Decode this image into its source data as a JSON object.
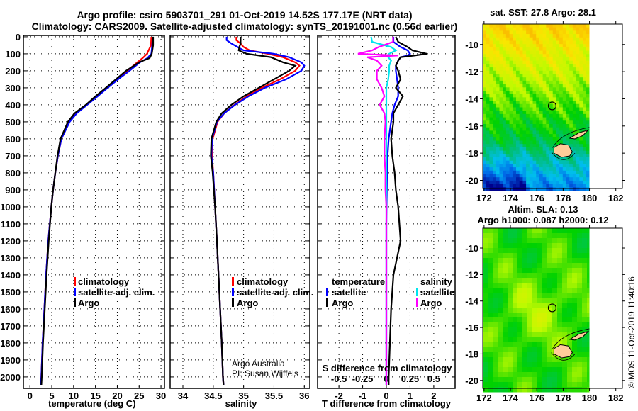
{
  "title": {
    "line1": "Argo profile: csiro 5903701_291 01-Oct-2019 14.52S 177.17E (NRT data)",
    "line2": "Climatology: CARS2009. Satellite-adjusted climatology: synTS_20191001.nc (0.56d earlier)"
  },
  "credit": "©IMOS 11-Oct-2019 11:40:16",
  "attribution": {
    "line1": "Argo Australia",
    "line2": "PI: Susan Wijffels"
  },
  "colors": {
    "climatology": "#ff0000",
    "satellite": "#0000ff",
    "argo": "#000000",
    "sal_satellite": "#00e5ee",
    "sal_argo": "#ff00ff"
  },
  "chart_data": [
    {
      "type": "line",
      "id": "temperature",
      "xlabel": "temperature (deg C)",
      "ylabel": "",
      "xlim": [
        -1.5,
        30.8
      ],
      "ylim": [
        2067,
        -8
      ],
      "xticks": [
        "0",
        "5",
        "10",
        "15",
        "20",
        "25",
        "30"
      ],
      "yticks": [
        "0",
        "100",
        "200",
        "300",
        "400",
        "500",
        "600",
        "700",
        "800",
        "900",
        "1000",
        "1100",
        "1200",
        "1300",
        "1400",
        "1500",
        "1600",
        "1700",
        "1800",
        "1900",
        "2000"
      ],
      "grid": true,
      "legend": [
        "climatology",
        "satellite-adj. clim.",
        "Argo"
      ],
      "depth": [
        0,
        50,
        100,
        125,
        150,
        200,
        250,
        300,
        350,
        400,
        450,
        500,
        600,
        700,
        800,
        900,
        1000,
        1200,
        1400,
        1600,
        1800,
        2000,
        2050
      ],
      "series": [
        {
          "name": "climatology",
          "values": [
            27.8,
            27.7,
            26.8,
            25.8,
            24.6,
            22.3,
            19.9,
            17.6,
            15.3,
            13.0,
            10.6,
            9.0,
            7.2,
            6.4,
            5.8,
            5.3,
            4.9,
            4.2,
            3.7,
            3.3,
            2.9,
            2.6,
            2.5
          ]
        },
        {
          "name": "satellite-adj. clim.",
          "values": [
            28.1,
            28.0,
            27.8,
            26.9,
            25.2,
            22.8,
            20.2,
            17.8,
            15.5,
            13.1,
            10.7,
            9.1,
            7.2,
            6.4,
            5.8,
            5.3,
            4.9,
            4.2,
            3.7,
            3.3,
            2.9,
            2.6,
            2.5
          ]
        },
        {
          "name": "Argo",
          "values": [
            28.2,
            28.2,
            27.9,
            27.4,
            25.0,
            22.0,
            19.7,
            17.4,
            15.0,
            12.8,
            10.2,
            8.7,
            7.0,
            6.3,
            5.8,
            5.3,
            4.9,
            4.3,
            3.8,
            3.4,
            3.0,
            2.7,
            2.6
          ]
        }
      ]
    },
    {
      "type": "line",
      "id": "salinity",
      "xlabel": "salinity",
      "xlim": [
        33.79,
        36.09
      ],
      "ylim": [
        2067,
        -8
      ],
      "xticks": [
        "34",
        "34.5",
        "35",
        "35.5",
        "36"
      ],
      "grid": true,
      "legend": [
        "climatology",
        "satellite-adj. clim.",
        "Argo"
      ],
      "depth": [
        0,
        20,
        40,
        60,
        80,
        100,
        120,
        150,
        170,
        200,
        250,
        300,
        350,
        400,
        450,
        500,
        600,
        700,
        800,
        1000,
        1200,
        1500,
        1800,
        2000,
        2050
      ],
      "series": [
        {
          "name": "climatology",
          "values": [
            34.88,
            34.88,
            34.95,
            35.0,
            35.1,
            35.4,
            35.65,
            35.85,
            35.92,
            35.85,
            35.6,
            35.3,
            35.05,
            34.85,
            34.68,
            34.57,
            34.49,
            34.48,
            34.5,
            34.53,
            34.56,
            34.6,
            34.64,
            34.66,
            34.67
          ]
        },
        {
          "name": "satellite-adj. clim.",
          "values": [
            34.72,
            34.72,
            34.8,
            34.9,
            35.0,
            35.5,
            35.75,
            35.95,
            36.0,
            35.95,
            35.7,
            35.35,
            35.08,
            34.86,
            34.68,
            34.56,
            34.48,
            34.47,
            34.5,
            34.53,
            34.56,
            34.6,
            34.64,
            34.66,
            34.67
          ]
        },
        {
          "name": "Argo",
          "values": [
            34.95,
            34.95,
            34.95,
            34.93,
            34.92,
            35.05,
            35.45,
            35.65,
            35.85,
            35.75,
            35.5,
            35.25,
            35.0,
            34.8,
            34.64,
            34.55,
            34.47,
            34.46,
            34.49,
            34.53,
            34.56,
            34.6,
            34.64,
            34.66,
            34.67
          ]
        }
      ]
    },
    {
      "type": "line",
      "id": "difference",
      "xlabel": "T difference from climatology",
      "x2label": "S difference from climatology",
      "xlim": [
        -2.9,
        2.9
      ],
      "ylim": [
        2067,
        -8
      ],
      "xticks": [
        "-2",
        "-1",
        "0",
        "1",
        "2"
      ],
      "x2ticks": [
        "-0.5",
        "-0.25",
        "0",
        "0.25",
        "0.5"
      ],
      "grid": true,
      "legend_temperature": {
        "title": "temperature",
        "items": [
          "satellite",
          "Argo"
        ]
      },
      "legend_salinity": {
        "title": "salinity",
        "items": [
          "satellite",
          "Argo"
        ]
      },
      "depth": [
        0,
        30,
        60,
        80,
        100,
        110,
        120,
        140,
        170,
        200,
        250,
        300,
        350,
        400,
        450,
        500,
        600,
        700,
        800,
        900,
        1000,
        1100,
        1200,
        1400,
        1600,
        1800,
        2000,
        2050
      ],
      "series": [
        {
          "name": "T satellite",
          "values": [
            0.3,
            0.3,
            0.6,
            0.9,
            1.0,
            0.9,
            0.6,
            0.5,
            0.4,
            0.4,
            0.45,
            0.5,
            0.5,
            0.35,
            0.25,
            0.2,
            0.1,
            0.05,
            0.03,
            0.02,
            0.01,
            0.0,
            0.0,
            0.0,
            0.0,
            0.0,
            0.0,
            0.0
          ]
        },
        {
          "name": "T Argo",
          "values": [
            0.4,
            0.5,
            0.9,
            1.1,
            1.7,
            1.2,
            0.6,
            0.5,
            0.4,
            0.5,
            0.6,
            0.4,
            0.7,
            0.5,
            0.3,
            0.3,
            0.2,
            0.25,
            0.35,
            0.4,
            0.5,
            0.55,
            0.6,
            0.3,
            0.2,
            0.15,
            0.1,
            0.1
          ]
        },
        {
          "name": "S satellite",
          "values": [
            -0.16,
            -0.15,
            0.05,
            0.1,
            0.03,
            0.02,
            0.02,
            0.05,
            0.03,
            0.03,
            0.02,
            0.0,
            0.0,
            0.0,
            0.0,
            0.0,
            0.0,
            0.0,
            0.0,
            0.0,
            0.0,
            0.0,
            0.0,
            0.0,
            0.0,
            0.0,
            0.0,
            0.0
          ]
        },
        {
          "name": "S Argo",
          "values": [
            0.07,
            0.07,
            -0.08,
            -0.15,
            -0.3,
            0.12,
            -0.2,
            -0.1,
            -0.05,
            -0.1,
            -0.1,
            -0.05,
            -0.02,
            -0.07,
            -0.02,
            -0.01,
            -0.02,
            -0.02,
            -0.01,
            -0.01,
            0.0,
            0.0,
            0.0,
            0.0,
            0.0,
            0.0,
            0.0,
            0.0
          ]
        }
      ]
    },
    {
      "type": "heatmap",
      "id": "sst-map",
      "title": "sat. SST: 27.8 Argo: 28.1",
      "xlim": [
        171.9,
        182.5
      ],
      "ylim": [
        -20.6,
        -8.5
      ],
      "xticks": [
        "172",
        "174",
        "176",
        "178",
        "180",
        "182"
      ],
      "yticks": [
        "-10",
        "-12",
        "-14",
        "-16",
        "-18",
        "-20"
      ],
      "argo_position": [
        177.17,
        -14.52
      ]
    },
    {
      "type": "heatmap",
      "id": "sla-map",
      "title": "Altim. SLA: 0.13",
      "subtitle": "Argo h1000: 0.087 h2000: 0.12",
      "xlim": [
        171.9,
        182.5
      ],
      "ylim": [
        -20.6,
        -8.5
      ],
      "xticks": [
        "172",
        "174",
        "176",
        "178",
        "180",
        "182"
      ],
      "yticks": [
        "-10",
        "-12",
        "-14",
        "-16",
        "-18",
        "-20"
      ],
      "argo_position": [
        177.17,
        -14.52
      ]
    }
  ]
}
